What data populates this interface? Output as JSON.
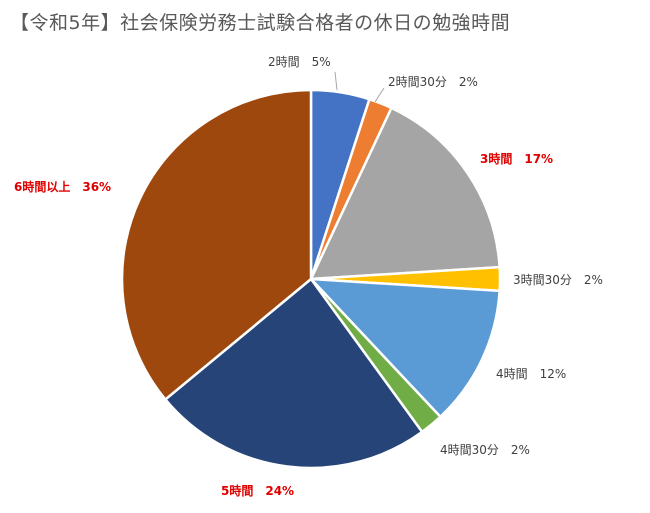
{
  "chart_data": {
    "type": "pie",
    "title": "【令和5年】社会保険労務士試験合格者の休日の勉強時間",
    "slices": [
      {
        "label": "2時間",
        "percent_label": "5%",
        "value": 5,
        "color": "#4472c4",
        "emphasis": false
      },
      {
        "label": "2時間30分",
        "percent_label": "2%",
        "value": 2,
        "color": "#ed7d31",
        "emphasis": false
      },
      {
        "label": "3時間",
        "percent_label": "17%",
        "value": 17,
        "color": "#a5a5a5",
        "emphasis": true
      },
      {
        "label": "3時間30分",
        "percent_label": "2%",
        "value": 2,
        "color": "#ffc000",
        "emphasis": false
      },
      {
        "label": "4時間",
        "percent_label": "12%",
        "value": 12,
        "color": "#5b9bd5",
        "emphasis": false
      },
      {
        "label": "4時間30分",
        "percent_label": "2%",
        "value": 2,
        "color": "#70ad47",
        "emphasis": false
      },
      {
        "label": "5時間",
        "percent_label": "24%",
        "value": 24,
        "color": "#264478",
        "emphasis": true
      },
      {
        "label": "6時間以上",
        "percent_label": "36%",
        "value": 36,
        "color": "#9e480e",
        "emphasis": true
      }
    ],
    "start_angle_deg": 0,
    "direction": "clockwise",
    "legend": "none",
    "emphasis_color": "#e00000"
  }
}
